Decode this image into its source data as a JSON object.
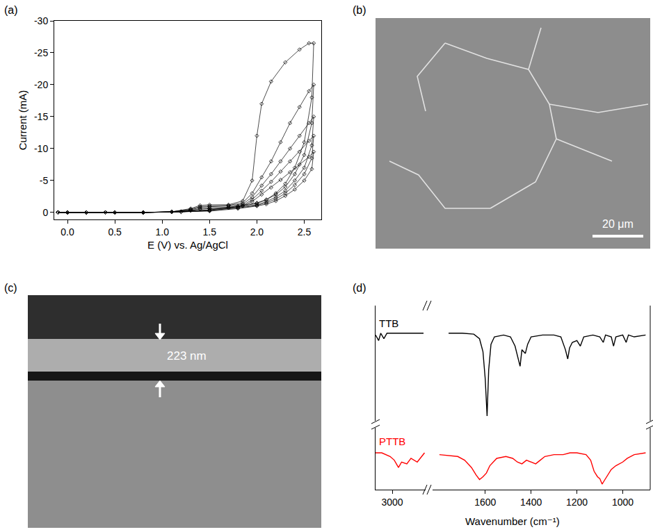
{
  "chart_data": [
    {
      "type": "scatter",
      "title": "(a)",
      "x_label": "E (V) vs. Ag/AgCl",
      "y_label": "Current (mA)",
      "xlim": [
        -0.14,
        2.68
      ],
      "xticks": [
        {
          "value": 0,
          "label": "0.0"
        },
        0.5,
        {
          "value": 1,
          "label": "1.0"
        },
        1.5,
        {
          "value": 2,
          "label": "2.0"
        },
        2.5
      ],
      "ylim": [
        1.1,
        -30
      ],
      "yticks": [
        -30,
        -25,
        -20,
        -15,
        -10,
        -5,
        0
      ],
      "marker": "diamond-open",
      "line_style": "solid",
      "color": "#000000",
      "series": [
        {
          "x": [
            -0.1,
            0.2,
            0.5,
            0.8,
            1.1,
            1.3,
            1.4,
            1.5,
            1.7,
            1.85,
            1.95,
            2.0,
            2.05,
            2.15,
            2.3,
            2.45,
            2.55,
            2.6,
            2.58,
            2.5,
            2.4,
            2.3,
            2.2,
            2.1,
            2.0,
            1.8,
            1.5,
            1.2,
            0.8,
            0.4,
            0.0,
            -0.1
          ],
          "values": [
            0,
            0,
            0,
            0,
            -0.1,
            -0.6,
            -1.1,
            -1.2,
            -1.2,
            -1.8,
            -5,
            -12,
            -17,
            -20.5,
            -23.5,
            -25.5,
            -26.5,
            -26.5,
            -18,
            -11,
            -7,
            -4.5,
            -3,
            -2,
            -1.5,
            -1,
            -0.4,
            -0.1,
            0,
            0,
            0,
            0
          ]
        },
        {
          "x": [
            -0.1,
            0.2,
            0.5,
            0.8,
            1.1,
            1.3,
            1.4,
            1.5,
            1.7,
            1.85,
            1.95,
            2.05,
            2.15,
            2.25,
            2.35,
            2.45,
            2.55,
            2.6,
            2.58,
            2.5,
            2.4,
            2.3,
            2.2,
            2.1,
            2.0,
            1.8,
            1.5,
            1.2,
            0.8,
            0.4,
            0.0,
            -0.1
          ],
          "values": [
            0,
            0,
            0,
            0,
            -0.1,
            -0.5,
            -0.9,
            -1.0,
            -1.1,
            -1.5,
            -3,
            -5.5,
            -8,
            -11,
            -14,
            -16.5,
            -19,
            -20,
            -14,
            -9,
            -6,
            -4,
            -2.8,
            -2,
            -1.4,
            -0.9,
            -0.4,
            -0.1,
            0,
            0,
            0,
            0
          ]
        },
        {
          "x": [
            -0.1,
            0.2,
            0.5,
            0.8,
            1.1,
            1.3,
            1.4,
            1.5,
            1.7,
            1.85,
            1.95,
            2.05,
            2.15,
            2.25,
            2.35,
            2.45,
            2.55,
            2.6,
            2.58,
            2.5,
            2.4,
            2.3,
            2.2,
            2.1,
            2.0,
            1.8,
            1.5,
            1.2,
            0.8,
            0.4,
            0.0,
            -0.1
          ],
          "values": [
            0,
            0,
            0,
            0,
            -0.1,
            -0.4,
            -0.8,
            -0.9,
            -1.0,
            -1.3,
            -2.4,
            -4.2,
            -6,
            -8,
            -10,
            -12,
            -14,
            -15,
            -10.5,
            -7,
            -5,
            -3.4,
            -2.4,
            -1.7,
            -1.2,
            -0.8,
            -0.3,
            -0.1,
            0,
            0,
            0,
            0
          ]
        },
        {
          "x": [
            -0.1,
            0.2,
            0.5,
            0.8,
            1.1,
            1.3,
            1.4,
            1.5,
            1.7,
            1.85,
            1.95,
            2.05,
            2.15,
            2.25,
            2.35,
            2.45,
            2.55,
            2.6,
            2.58,
            2.5,
            2.4,
            2.3,
            2.2,
            2.1,
            2.0,
            1.8,
            1.5,
            1.2,
            0.8,
            0.4,
            0.0,
            -0.1
          ],
          "values": [
            0,
            0,
            0,
            0,
            -0.1,
            -0.3,
            -0.6,
            -0.7,
            -0.8,
            -1.1,
            -2,
            -3.4,
            -4.8,
            -6.4,
            -8,
            -9.5,
            -11.2,
            -12,
            -8.5,
            -6,
            -4.3,
            -3,
            -2.1,
            -1.5,
            -1.1,
            -0.7,
            -0.3,
            -0.1,
            0,
            0,
            0,
            0
          ]
        },
        {
          "x": [
            -0.1,
            0.2,
            0.5,
            0.8,
            1.1,
            1.3,
            1.4,
            1.5,
            1.7,
            1.85,
            1.95,
            2.05,
            2.15,
            2.25,
            2.35,
            2.45,
            2.55,
            2.6,
            2.58,
            2.5,
            2.4,
            2.3,
            2.2,
            2.1,
            2.0,
            1.8,
            1.5,
            1.2,
            0.8,
            0.4,
            0.0,
            -0.1
          ],
          "values": [
            0,
            0,
            0,
            0,
            -0.1,
            -0.3,
            -0.5,
            -0.6,
            -0.7,
            -1.0,
            -1.7,
            -2.8,
            -3.9,
            -5.1,
            -6.3,
            -7.5,
            -8.7,
            -9.5,
            -6.8,
            -5,
            -3.6,
            -2.6,
            -1.8,
            -1.3,
            -1,
            -0.6,
            -0.2,
            -0.1,
            0,
            0,
            0,
            0
          ]
        }
      ]
    },
    {
      "type": "line",
      "title": "(d)",
      "x_label": "Wavenumber (cm⁻¹)",
      "xlim": [
        [
          3080,
          2840
        ],
        [
          1830,
          880
        ]
      ],
      "xticks": [
        [
          3000
        ],
        [
          1600,
          1400,
          1200,
          1000
        ]
      ],
      "ylim": [
        0,
        10
      ],
      "tick_labels": "x",
      "series": [
        {
          "name": "TTB",
          "color": "#000000",
          "x": [
            3080,
            3065,
            3055,
            3040,
            3025,
            3000,
            2950,
            2900,
            2850,
            1760,
            1700,
            1650,
            1625,
            1610,
            1600,
            1592,
            1585,
            1575,
            1560,
            1520,
            1490,
            1470,
            1455,
            1448,
            1440,
            1425,
            1415,
            1400,
            1350,
            1300,
            1270,
            1250,
            1240,
            1232,
            1220,
            1200,
            1185,
            1170,
            1130,
            1100,
            1085,
            1075,
            1050,
            1040,
            1030,
            1000,
            985,
            975,
            950,
            900
          ],
          "values": [
            8.4,
            8.1,
            8.5,
            8.2,
            8.5,
            8.5,
            8.5,
            8.5,
            8.5,
            8.5,
            8.5,
            8.45,
            8.2,
            7.5,
            6.0,
            4.0,
            6.5,
            7.9,
            8.3,
            8.4,
            8.3,
            7.8,
            7.0,
            6.7,
            7.6,
            7.4,
            7.9,
            8.3,
            8.4,
            8.4,
            8.3,
            7.6,
            7.1,
            7.7,
            8.0,
            8.1,
            7.8,
            8.3,
            8.4,
            8.3,
            8.0,
            8.4,
            8.3,
            7.8,
            8.3,
            8.4,
            8.0,
            8.4,
            8.3,
            8.4
          ]
        },
        {
          "name": "PTTB",
          "color": "#ff0000",
          "x": [
            3080,
            3050,
            3010,
            2990,
            2970,
            2955,
            2930,
            2910,
            2880,
            2860,
            2845,
            1800,
            1720,
            1690,
            1660,
            1640,
            1625,
            1610,
            1595,
            1580,
            1550,
            1510,
            1480,
            1460,
            1440,
            1420,
            1400,
            1380,
            1360,
            1340,
            1300,
            1260,
            1230,
            1200,
            1160,
            1140,
            1125,
            1110,
            1100,
            1090,
            1080,
            1070,
            1050,
            1030,
            1000,
            980,
            950,
            900
          ],
          "values": [
            2.0,
            2.0,
            1.8,
            1.6,
            1.2,
            1.5,
            1.4,
            1.7,
            1.5,
            1.8,
            2.0,
            1.9,
            1.8,
            1.6,
            1.2,
            0.8,
            0.55,
            0.7,
            0.9,
            1.3,
            1.7,
            1.8,
            1.7,
            1.5,
            1.4,
            1.6,
            1.5,
            1.4,
            1.6,
            1.8,
            1.9,
            1.9,
            2.0,
            2.0,
            1.9,
            1.6,
            1.0,
            0.7,
            0.6,
            0.3,
            0.5,
            0.7,
            1.1,
            1.3,
            1.5,
            1.7,
            1.9,
            2.0
          ]
        }
      ]
    }
  ],
  "images": [
    {
      "label": "(b)",
      "scale_bar": "20 μm"
    },
    {
      "label": "(c)",
      "thickness_label": "223 nm"
    }
  ]
}
